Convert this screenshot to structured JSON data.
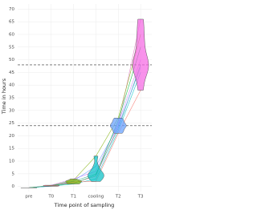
{
  "chart_data": {
    "type": "violin_lines",
    "x_label": "Time point of sampling",
    "y_label": "Time in hours",
    "categories": [
      "pre",
      "T0",
      "T1",
      "cooling",
      "T2",
      "T3"
    ],
    "violin_colors": [
      "#cfcfcf",
      "#f8766d",
      "#7cae00",
      "#00bfc4",
      "#619cff",
      "#f564e3"
    ],
    "series": [
      {
        "color": "#e377c2",
        "values": [
          -0.5,
          0.3,
          1.5,
          4,
          24,
          66
        ]
      },
      {
        "color": "#1f9e89",
        "values": [
          -0.5,
          0.2,
          2,
          5,
          23,
          48
        ]
      },
      {
        "color": "#7cae00",
        "values": [
          -0.5,
          0.4,
          2.5,
          12,
          27,
          60
        ]
      },
      {
        "color": "#00bfc4",
        "values": [
          -0.5,
          0.1,
          1,
          3,
          22,
          45
        ]
      },
      {
        "color": "#c77cff",
        "values": [
          -0.5,
          0.5,
          3,
          6,
          25,
          50
        ]
      },
      {
        "color": "#f8766d",
        "values": [
          -0.5,
          0.3,
          1.8,
          2,
          21,
          38
        ]
      },
      {
        "color": "#619cff",
        "values": [
          -0.5,
          0.2,
          2.2,
          8,
          24,
          47
        ]
      },
      {
        "color": "#00ba38",
        "values": [
          -0.5,
          0.4,
          1.2,
          4.5,
          26,
          55
        ]
      }
    ],
    "hlines": [
      24,
      48
    ],
    "ylim": [
      -2,
      72
    ],
    "yticks": [
      0,
      5,
      10,
      15,
      20,
      25,
      30,
      35,
      40,
      45,
      50,
      55,
      60,
      65,
      70
    ],
    "grid": true
  }
}
